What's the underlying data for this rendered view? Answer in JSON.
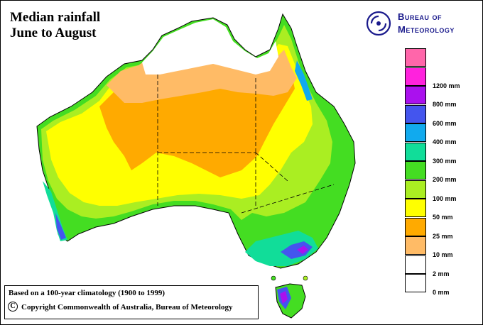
{
  "title": {
    "line1": "Median rainfall",
    "line2": "June to August"
  },
  "logo": {
    "line1": "Bureau of",
    "line2": "Meteorology",
    "icon": "bom-spiral-logo-icon"
  },
  "legend": {
    "items": [
      {
        "label": "",
        "color": "#ff66aa"
      },
      {
        "label": "1200 mm",
        "color": "#ff22dd"
      },
      {
        "label": "800 mm",
        "color": "#aa11ee"
      },
      {
        "label": "600 mm",
        "color": "#4455ee"
      },
      {
        "label": "400 mm",
        "color": "#11aaee"
      },
      {
        "label": "300 mm",
        "color": "#11dd99"
      },
      {
        "label": "200 mm",
        "color": "#44dd22"
      },
      {
        "label": "100 mm",
        "color": "#aaee22"
      },
      {
        "label": "50 mm",
        "color": "#ffff00"
      },
      {
        "label": "25 mm",
        "color": "#ffaa00"
      },
      {
        "label": "10 mm",
        "color": "#ffbb66"
      },
      {
        "label": "2 mm",
        "color": "#ffffff"
      },
      {
        "label": "0 mm",
        "color": "#ffffff"
      }
    ]
  },
  "notes": {
    "climatology": "Based on a 100-year climatology (1900 to 1999)",
    "copyright": "Copyright Commonwealth of Australia, Bureau of Meteorology",
    "copyright_symbol": "C"
  },
  "colors": {
    "very_dry": "#ffbb66",
    "dry": "#ffaa00",
    "low": "#ffff00",
    "moderate": "#aaee22",
    "wet": "#44dd22",
    "wetter": "#11dd99",
    "very_wet": "#11aaee",
    "extreme": "#4455ee",
    "peak": "#aa11ee"
  }
}
